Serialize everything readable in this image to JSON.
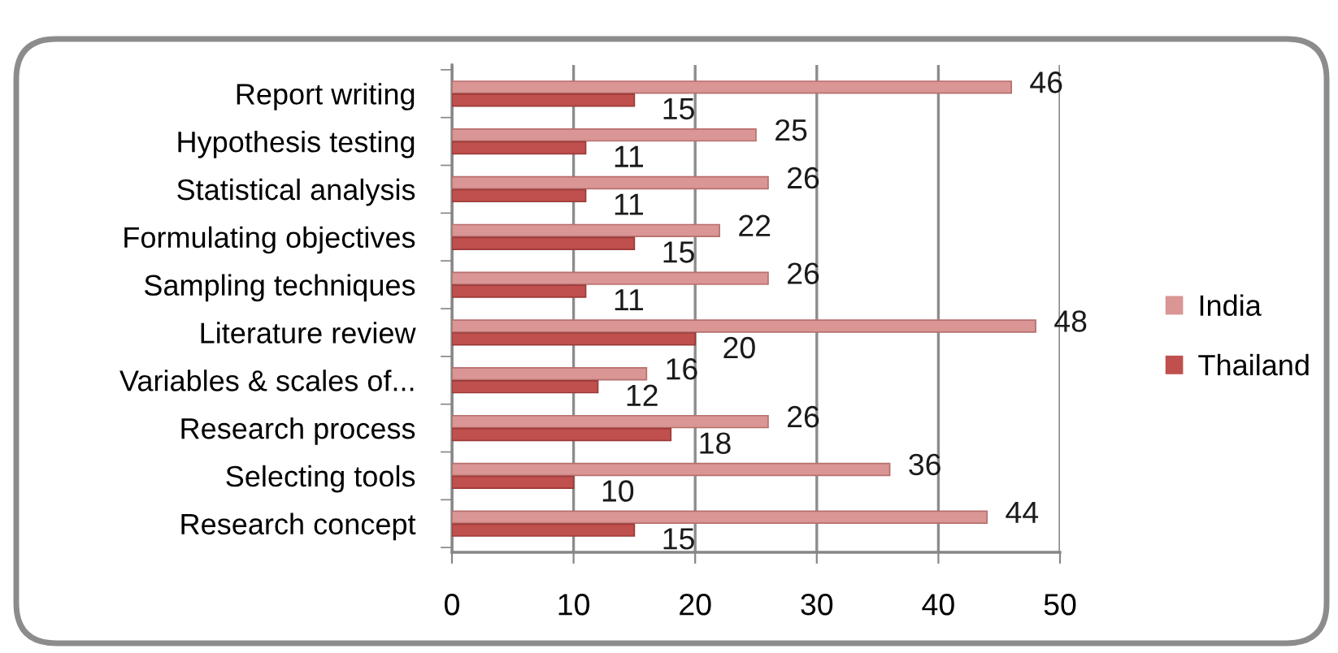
{
  "chart_data": {
    "type": "bar",
    "orientation": "horizontal",
    "categories": [
      "Report writing",
      "Hypothesis testing",
      "Statistical analysis",
      "Formulating objectives",
      "Sampling techniques",
      "Literature review",
      "Variables & scales of...",
      "Research process",
      "Selecting tools",
      "Research concept"
    ],
    "series": [
      {
        "name": "India",
        "color": "#d99694",
        "values": [
          46,
          25,
          26,
          22,
          26,
          48,
          16,
          26,
          36,
          44
        ]
      },
      {
        "name": "Thailand",
        "color": "#c0504d",
        "values": [
          15,
          11,
          11,
          15,
          11,
          20,
          12,
          18,
          10,
          15
        ]
      }
    ],
    "xlim": [
      0,
      50
    ],
    "xticks": [
      0,
      10,
      20,
      30,
      40,
      50
    ],
    "grid": "x",
    "legend": "right",
    "data_labels": true
  }
}
